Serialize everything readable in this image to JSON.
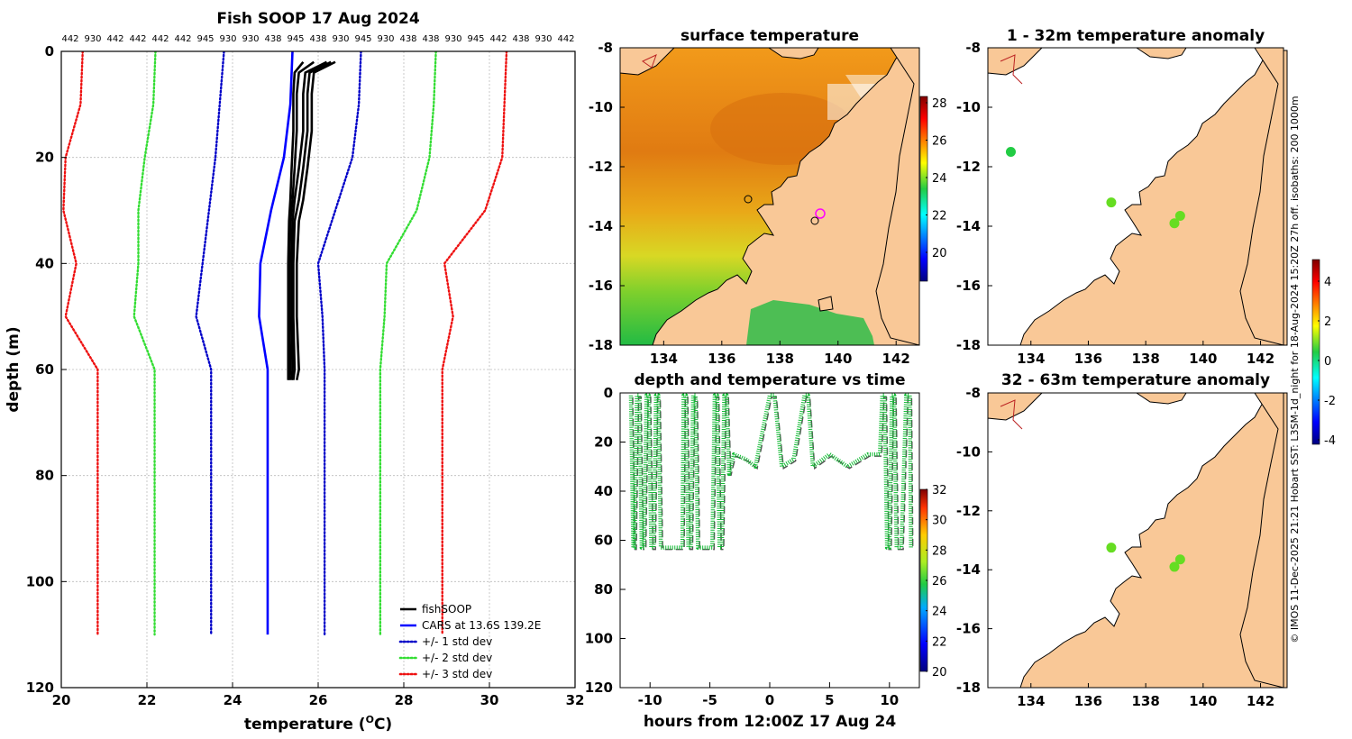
{
  "colors": {
    "land": "#f9c897",
    "cars": "#0000ff",
    "std1": "#0000c8",
    "std2": "#33dd33",
    "std3": "#ee1111",
    "fish": "#000000",
    "track": "#11bb33"
  },
  "profile": {
    "title": "Fish SOOP 17 Aug 2024",
    "top_labels": [
      "442",
      "930",
      "442",
      "442",
      "442",
      "442",
      "945",
      "930",
      "930",
      "438",
      "945",
      "438",
      "930",
      "945",
      "930",
      "438",
      "438",
      "930",
      "945",
      "442",
      "438",
      "930",
      "442"
    ],
    "xlabel": "temperature (",
    "xlabel_unit": "O",
    "xlabel_end": "C)",
    "ylabel": "depth (m)",
    "legend": [
      "fishSOOP",
      "CARS at 13.6S 139.2E",
      "+/- 1 std dev",
      "+/- 2 std dev",
      "+/- 3 std dev"
    ]
  },
  "sst": {
    "title": "surface temperature",
    "colorbar_ticks": [
      "28",
      "26",
      "24",
      "22",
      "20"
    ]
  },
  "anom1": {
    "title": "1 - 32m temperature anomaly"
  },
  "anom2": {
    "title": "32 - 63m temperature anomaly"
  },
  "anom_colorbar_ticks": [
    "4",
    "2",
    "0",
    "-2",
    "-4"
  ],
  "time": {
    "title": "depth and temperature vs time",
    "xlabel": "hours from 12:00Z 17 Aug 24",
    "colorbar_ticks": [
      "32",
      "30",
      "28",
      "26",
      "24",
      "22",
      "20"
    ]
  },
  "side_text": "© IMOS 11-Dec-2025 21:21 Hobart SST: L3SM-1d_night for 18-Aug-2024 15:20Z 27h off. isobaths: 200  1000m",
  "chart_data": [
    {
      "type": "line",
      "title": "Fish SOOP 17 Aug 2024",
      "xlabel": "temperature (oC)",
      "ylabel": "depth (m)",
      "xlim": [
        20,
        32
      ],
      "ylim": [
        120,
        0
      ],
      "xticks": [
        20,
        22,
        24,
        26,
        28,
        30,
        32
      ],
      "yticks": [
        0,
        20,
        40,
        60,
        80,
        100,
        120
      ],
      "grid": true,
      "legend_position": "bottom-right",
      "series": [
        {
          "name": "CARS at 13.6S 139.2E",
          "style": "solid",
          "color": "#0000ff",
          "points": [
            [
              25.4,
              0
            ],
            [
              25.35,
              10
            ],
            [
              25.2,
              20
            ],
            [
              24.9,
              30
            ],
            [
              24.65,
              40
            ],
            [
              24.62,
              50
            ],
            [
              24.82,
              60
            ],
            [
              24.82,
              110
            ]
          ]
        },
        {
          "name": "+/- 1 std dev",
          "style": "dotted",
          "color": "#0000c8",
          "points": [
            [
              23.8,
              0
            ],
            [
              23.7,
              10
            ],
            [
              23.6,
              20
            ],
            [
              23.45,
              30
            ],
            [
              23.3,
              40
            ],
            [
              23.15,
              50
            ],
            [
              23.5,
              60
            ],
            [
              23.5,
              110
            ]
          ]
        },
        {
          "name": "+/- 1 std dev",
          "style": "dotted",
          "color": "#0000c8",
          "points": [
            [
              27.0,
              0
            ],
            [
              26.95,
              10
            ],
            [
              26.8,
              20
            ],
            [
              26.4,
              30
            ],
            [
              26.0,
              40
            ],
            [
              26.1,
              50
            ],
            [
              26.15,
              60
            ],
            [
              26.15,
              110
            ]
          ]
        },
        {
          "name": "+/- 2 std dev",
          "style": "dotted",
          "color": "#33dd33",
          "points": [
            [
              22.2,
              0
            ],
            [
              22.15,
              10
            ],
            [
              21.95,
              20
            ],
            [
              21.8,
              30
            ],
            [
              21.8,
              40
            ],
            [
              21.7,
              50
            ],
            [
              22.18,
              60
            ],
            [
              22.18,
              110
            ]
          ]
        },
        {
          "name": "+/- 2 std dev",
          "style": "dotted",
          "color": "#33dd33",
          "points": [
            [
              28.75,
              0
            ],
            [
              28.7,
              10
            ],
            [
              28.6,
              20
            ],
            [
              28.3,
              30
            ],
            [
              27.6,
              40
            ],
            [
              27.55,
              50
            ],
            [
              27.45,
              60
            ],
            [
              27.45,
              110
            ]
          ]
        },
        {
          "name": "+/- 3 std dev",
          "style": "dotted",
          "color": "#ee1111",
          "points": [
            [
              20.5,
              0
            ],
            [
              20.45,
              10
            ],
            [
              20.1,
              20
            ],
            [
              20.05,
              30
            ],
            [
              20.35,
              40
            ],
            [
              20.1,
              50
            ],
            [
              20.85,
              60
            ],
            [
              20.85,
              110
            ]
          ]
        },
        {
          "name": "+/- 3 std dev",
          "style": "dotted",
          "color": "#ee1111",
          "points": [
            [
              30.4,
              0
            ],
            [
              30.35,
              10
            ],
            [
              30.3,
              20
            ],
            [
              29.9,
              30
            ],
            [
              28.95,
              40
            ],
            [
              29.15,
              50
            ],
            [
              28.9,
              60
            ],
            [
              28.9,
              110
            ]
          ]
        }
      ],
      "fish_profiles": [
        [
          [
            26.4,
            2
          ],
          [
            25.9,
            4
          ],
          [
            25.85,
            8
          ],
          [
            25.85,
            15
          ],
          [
            25.75,
            22
          ],
          [
            25.65,
            28
          ],
          [
            25.55,
            32
          ],
          [
            25.5,
            40
          ],
          [
            25.5,
            50
          ],
          [
            25.55,
            60
          ],
          [
            25.5,
            62
          ]
        ],
        [
          [
            26.3,
            2
          ],
          [
            25.8,
            4
          ],
          [
            25.75,
            8
          ],
          [
            25.75,
            15
          ],
          [
            25.65,
            22
          ],
          [
            25.55,
            28
          ],
          [
            25.45,
            32
          ],
          [
            25.42,
            40
          ],
          [
            25.42,
            50
          ],
          [
            25.45,
            60
          ],
          [
            25.42,
            62
          ]
        ],
        [
          [
            26.2,
            2
          ],
          [
            25.7,
            4
          ],
          [
            25.65,
            8
          ],
          [
            25.65,
            15
          ],
          [
            25.55,
            22
          ],
          [
            25.45,
            28
          ],
          [
            25.4,
            32
          ],
          [
            25.38,
            40
          ],
          [
            25.38,
            50
          ],
          [
            25.4,
            60
          ],
          [
            25.38,
            62
          ]
        ],
        [
          [
            25.9,
            2
          ],
          [
            25.55,
            4
          ],
          [
            25.5,
            8
          ],
          [
            25.5,
            15
          ],
          [
            25.45,
            22
          ],
          [
            25.4,
            28
          ],
          [
            25.35,
            32
          ],
          [
            25.33,
            40
          ],
          [
            25.33,
            50
          ],
          [
            25.35,
            60
          ],
          [
            25.33,
            62
          ]
        ],
        [
          [
            25.65,
            2
          ],
          [
            25.45,
            4
          ],
          [
            25.42,
            8
          ],
          [
            25.42,
            15
          ],
          [
            25.38,
            22
          ],
          [
            25.35,
            28
          ],
          [
            25.32,
            32
          ],
          [
            25.3,
            40
          ],
          [
            25.3,
            50
          ],
          [
            25.3,
            60
          ],
          [
            25.3,
            62
          ]
        ]
      ]
    },
    {
      "type": "scatter",
      "title": "depth and temperature vs time",
      "xlabel": "hours from 12:00Z 17 Aug 24",
      "ylabel": "",
      "xlim": [
        -12.5,
        12.5
      ],
      "ylim": [
        120,
        0
      ],
      "xticks": [
        -10,
        -5,
        0,
        5,
        10
      ],
      "yticks": [
        0,
        20,
        40,
        60,
        80,
        100,
        120
      ],
      "colorbar": [
        20,
        32
      ],
      "track_color": "#11bb33",
      "track": [
        [
          -11.6,
          1
        ],
        [
          -11.4,
          63
        ],
        [
          -11.3,
          63
        ],
        [
          -11.1,
          1
        ],
        [
          -10.9,
          1
        ],
        [
          -10.7,
          63
        ],
        [
          -10.5,
          63
        ],
        [
          -10.3,
          1
        ],
        [
          -10.1,
          1
        ],
        [
          -9.9,
          63
        ],
        [
          -9.7,
          63
        ],
        [
          -9.5,
          1
        ],
        [
          -9.3,
          1
        ],
        [
          -9.1,
          63
        ],
        [
          -7.3,
          63
        ],
        [
          -7.2,
          1
        ],
        [
          -7.0,
          1
        ],
        [
          -6.8,
          63
        ],
        [
          -6.6,
          63
        ],
        [
          -6.4,
          1
        ],
        [
          -6.2,
          1
        ],
        [
          -6.0,
          63
        ],
        [
          -4.8,
          63
        ],
        [
          -4.6,
          1
        ],
        [
          -4.4,
          1
        ],
        [
          -4.2,
          63
        ],
        [
          -4.0,
          63
        ],
        [
          -3.8,
          1
        ],
        [
          -3.6,
          1
        ],
        [
          -3.4,
          33
        ],
        [
          -3.0,
          25
        ],
        [
          -2.0,
          27
        ],
        [
          -1.2,
          30
        ],
        [
          0,
          1
        ],
        [
          0.4,
          1
        ],
        [
          1.0,
          30
        ],
        [
          2.0,
          27
        ],
        [
          2.9,
          1
        ],
        [
          3.2,
          1
        ],
        [
          3.6,
          30
        ],
        [
          5.0,
          25
        ],
        [
          6.5,
          30
        ],
        [
          8.2,
          25
        ],
        [
          9.2,
          25
        ],
        [
          9.4,
          1
        ],
        [
          9.6,
          1
        ],
        [
          9.8,
          63
        ],
        [
          10.0,
          63
        ],
        [
          10.2,
          1
        ],
        [
          10.4,
          1
        ],
        [
          10.6,
          63
        ],
        [
          11.0,
          63
        ],
        [
          11.4,
          1
        ],
        [
          11.7,
          1
        ],
        [
          11.8,
          63
        ]
      ]
    },
    {
      "type": "heatmap",
      "title": "surface temperature",
      "xlim": [
        132.5,
        142.8
      ],
      "ylim": [
        -18,
        -8
      ],
      "xticks": [
        134,
        136,
        138,
        140,
        142
      ],
      "yticks": [
        -8,
        -10,
        -12,
        -14,
        -16,
        -18
      ],
      "colorbar": [
        19,
        28.5
      ]
    },
    {
      "type": "scatter",
      "title": "1 - 32m temperature anomaly",
      "xlim": [
        132.5,
        142.8
      ],
      "ylim": [
        -18,
        -8
      ],
      "xticks": [
        134,
        136,
        138,
        140,
        142
      ],
      "yticks": [
        -8,
        -10,
        -12,
        -14,
        -16,
        -18
      ],
      "points": [
        [
          133.3,
          -11.5,
          0.3
        ],
        [
          136.8,
          -13.2,
          1.5
        ],
        [
          139.0,
          -13.9,
          1.4
        ],
        [
          139.2,
          -13.65,
          1.4
        ]
      ]
    },
    {
      "type": "scatter",
      "title": "32 - 63m temperature anomaly",
      "xlim": [
        132.5,
        142.8
      ],
      "ylim": [
        -18,
        -8
      ],
      "xticks": [
        134,
        136,
        138,
        140,
        142
      ],
      "yticks": [
        -8,
        -10,
        -12,
        -14,
        -16,
        -18
      ],
      "points": [
        [
          136.8,
          -13.25,
          1.8
        ],
        [
          139.0,
          -13.9,
          1.5
        ],
        [
          139.2,
          -13.65,
          1.5
        ]
      ]
    }
  ]
}
